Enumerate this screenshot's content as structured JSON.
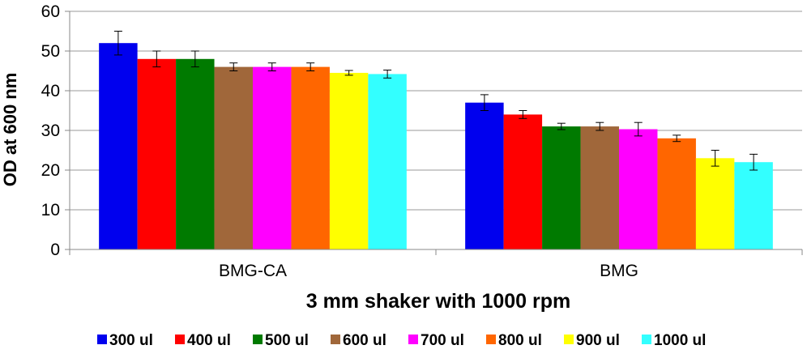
{
  "chart_data": {
    "type": "bar",
    "title": "",
    "xlabel": "3 mm shaker with 1000 rpm",
    "ylabel": "OD at 600 nm",
    "ylim": [
      0,
      60
    ],
    "yticks": [
      0,
      10,
      20,
      30,
      40,
      50,
      60
    ],
    "grid": true,
    "legend_position": "bottom",
    "categories": [
      "BMG-CA",
      "BMG"
    ],
    "series": [
      {
        "name": "300 ul",
        "color": "#0000ee",
        "values": [
          52,
          37
        ],
        "errors": [
          3.0,
          2.0
        ]
      },
      {
        "name": "400 ul",
        "color": "#ff0000",
        "values": [
          48,
          34
        ],
        "errors": [
          2.0,
          1.0
        ]
      },
      {
        "name": "500 ul",
        "color": "#007a00",
        "values": [
          48,
          31
        ],
        "errors": [
          2.0,
          0.8
        ]
      },
      {
        "name": "600 ul",
        "color": "#a0673a",
        "values": [
          46,
          31
        ],
        "errors": [
          1.0,
          1.0
        ]
      },
      {
        "name": "700 ul",
        "color": "#ff00ff",
        "values": [
          46,
          30.3
        ],
        "errors": [
          1.0,
          1.7
        ]
      },
      {
        "name": "800 ul",
        "color": "#ff6600",
        "values": [
          46,
          28
        ],
        "errors": [
          1.0,
          0.8
        ]
      },
      {
        "name": "900 ul",
        "color": "#ffff00",
        "values": [
          44.5,
          23
        ],
        "errors": [
          0.6,
          2.0
        ]
      },
      {
        "name": "1000 ul",
        "color": "#33ffff",
        "values": [
          44.2,
          22
        ],
        "errors": [
          1.0,
          2.0
        ]
      }
    ]
  }
}
